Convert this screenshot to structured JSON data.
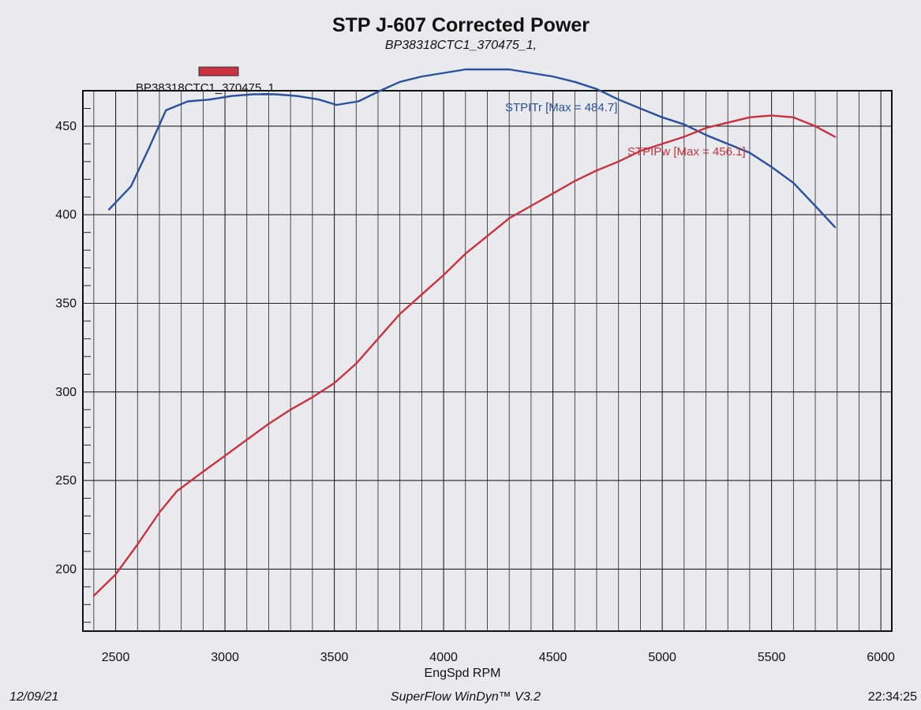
{
  "chart_data": {
    "type": "line",
    "title": "STP J-607 Corrected Power",
    "subtitle": "BP38318CTC1_370475_1,",
    "legend_label": "BP38318CTC1_370475_1",
    "legend_color": "#c8323f",
    "xlabel": "EngSpd RPM",
    "ylabel": "",
    "xlim": [
      2350,
      6050
    ],
    "ylim": [
      165,
      470
    ],
    "x_ticks": [
      2500,
      3000,
      3500,
      4000,
      4500,
      5000,
      5500,
      6000
    ],
    "y_ticks": [
      200,
      250,
      300,
      350,
      400,
      450
    ],
    "x_minor_step": 100,
    "y_minor_step": 10,
    "grid": true,
    "series": [
      {
        "name": "STPITr",
        "label": "STPITr [Max = 484.7]",
        "color": "#2a4f9c",
        "x": [
          2470,
          2570,
          2650,
          2730,
          2830,
          2930,
          3030,
          3130,
          3230,
          3330,
          3430,
          3510,
          3610,
          3710,
          3800,
          3900,
          4000,
          4100,
          4200,
          4300,
          4400,
          4500,
          4600,
          4700,
          4800,
          4900,
          5000,
          5100,
          5200,
          5300,
          5400,
          5500,
          5600,
          5700,
          5790
        ],
        "values": [
          403,
          416,
          437,
          459,
          464,
          465,
          467,
          468,
          468,
          467,
          465,
          462,
          464,
          470,
          475,
          478,
          480,
          482,
          482,
          482,
          480,
          478,
          475,
          471,
          465,
          460,
          455,
          451,
          445,
          440,
          435,
          427,
          418,
          405,
          393
        ]
      },
      {
        "name": "STPIPw",
        "label": "STPIPw [Max = 456.1]",
        "color": "#c8323f",
        "x": [
          2400,
          2500,
          2600,
          2700,
          2780,
          2900,
          3000,
          3100,
          3200,
          3300,
          3400,
          3500,
          3600,
          3700,
          3800,
          3900,
          4000,
          4100,
          4200,
          4300,
          4400,
          4500,
          4600,
          4700,
          4800,
          4900,
          5000,
          5100,
          5200,
          5300,
          5400,
          5500,
          5600,
          5700,
          5790
        ],
        "values": [
          185,
          197,
          214,
          232,
          244,
          255,
          264,
          273,
          282,
          290,
          297,
          305,
          316,
          330,
          344,
          355,
          366,
          378,
          388,
          398,
          405,
          412,
          419,
          425,
          430,
          436,
          440,
          444,
          449,
          452,
          455,
          456,
          455,
          450,
          444
        ]
      }
    ]
  },
  "footer": {
    "date": "12/09/21",
    "software": "SuperFlow WinDyn™ V3.2",
    "time": "22:34:25"
  }
}
